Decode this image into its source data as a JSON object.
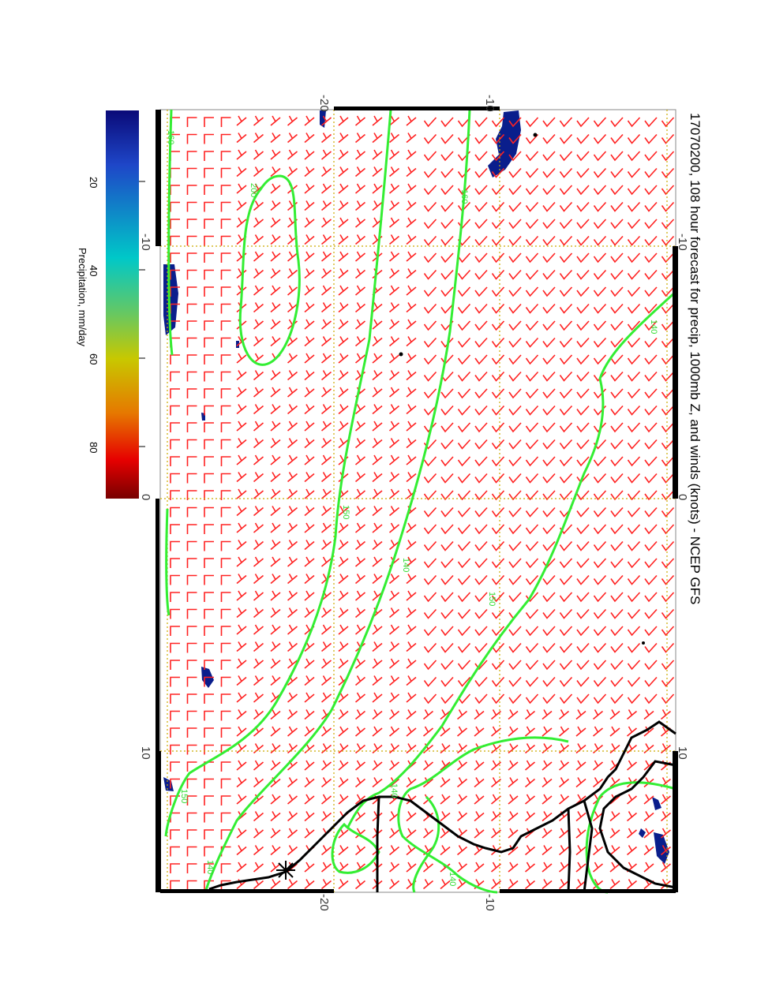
{
  "title": "17070200, 108 hour forecast for precip, 1000mb Z, and winds (knots) - NCEP GFS",
  "stamp": "17070200",
  "colorbar": {
    "label": "Precipitation, mm/day",
    "ticks": [
      "20",
      "40",
      "60",
      "80"
    ],
    "colors": [
      "#0a0a78",
      "#1e46c8",
      "#00c8c8",
      "#64c864",
      "#c8c800",
      "#e67800",
      "#e60000",
      "#780000"
    ]
  },
  "map": {
    "top_ticks": [
      "-20",
      "-10"
    ],
    "bottom_ticks": [
      "-20",
      "-10"
    ],
    "left_ticks": [
      "-10",
      "0",
      "10"
    ],
    "right_ticks": [
      "-10",
      "0",
      "10"
    ],
    "contour_labels": [
      "200",
      "160",
      "140",
      "150",
      "140",
      "150",
      "160",
      "140",
      "150",
      "140",
      "140"
    ],
    "colors": {
      "contour": "#33ee33",
      "wind": "#ff2222",
      "grid": "#ccaa00",
      "coast": "#000000",
      "precip": "#0a1e8c"
    }
  }
}
